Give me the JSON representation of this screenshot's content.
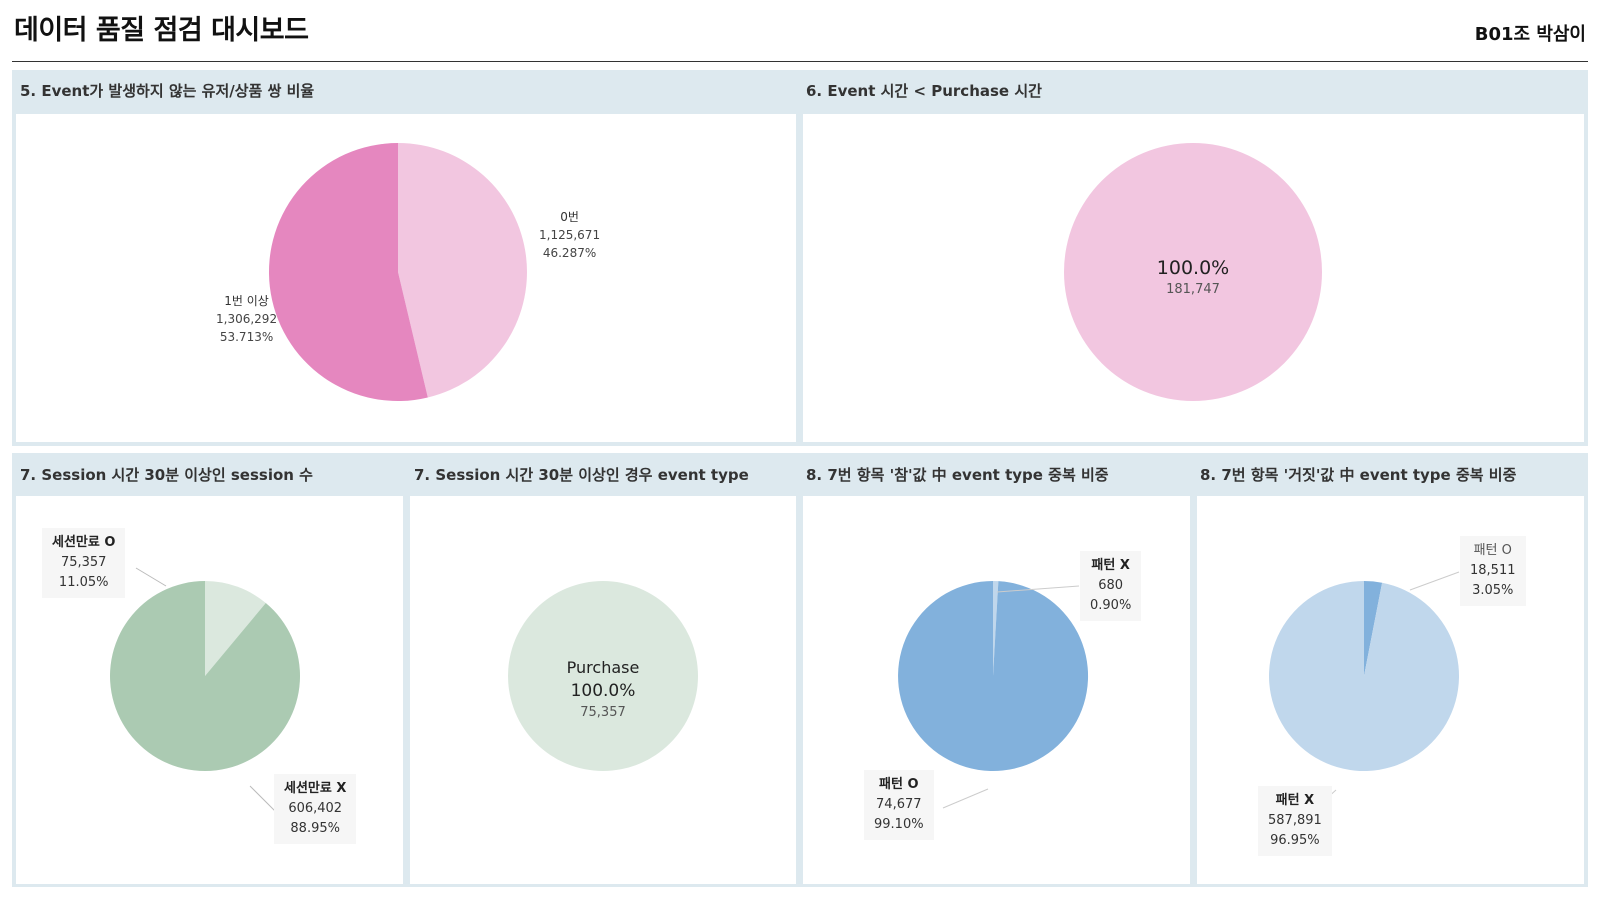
{
  "header": {
    "title": "데이터 품질 점검 대시보드",
    "author": "B01조 박삼이"
  },
  "colors": {
    "pink_light": "#f2c6e0",
    "pink_dark": "#e587bf",
    "green_light": "#dbe8de",
    "green_dark": "#abcab2",
    "blue_light": "#c0d7ec",
    "blue_dark": "#82b1dc",
    "band": "#dde9ef"
  },
  "panels": {
    "p5": {
      "title": "5.  Event가 발생하지 않는 유저/상품 쌍 비율"
    },
    "p6": {
      "title": "6. Event 시간 < Purchase 시간"
    },
    "p7a": {
      "title": "7. Session 시간 30분 이상인 session 수"
    },
    "p7b": {
      "title": "7. Session 시간 30분 이상인 경우 event type"
    },
    "p8a": {
      "title": "8. 7번 항목 '참'값 中 event type 중복 비중"
    },
    "p8b": {
      "title": "8. 7번 항목 '거짓'값 中 event type 중복 비중"
    }
  },
  "chart_data": [
    {
      "id": "p5",
      "type": "pie",
      "title": "5.  Event가 발생하지 않는 유저/상품 쌍 비율",
      "slices": [
        {
          "label": "0번",
          "value": 1125671,
          "value_text": "1,125,671",
          "percent_text": "46.287%",
          "color": "#f2c6e0"
        },
        {
          "label": "1번 이상",
          "value": 1306292,
          "value_text": "1,306,292",
          "percent_text": "53.713%",
          "color": "#e587bf"
        }
      ]
    },
    {
      "id": "p6",
      "type": "pie",
      "title": "6. Event 시간 < Purchase 시간",
      "slices": [
        {
          "label": "",
          "value": 181747,
          "value_text": "181,747",
          "percent_text": "100.0%",
          "color": "#f2c6e0"
        }
      ]
    },
    {
      "id": "p7a",
      "type": "pie",
      "title": "7. Session 시간 30분 이상인 session 수",
      "slices": [
        {
          "label": "세션만료 O",
          "value": 75357,
          "value_text": "75,357",
          "percent_text": "11.05%",
          "color": "#dbe8de"
        },
        {
          "label": "세션만료 X",
          "value": 606402,
          "value_text": "606,402",
          "percent_text": "88.95%",
          "color": "#abcab2"
        }
      ]
    },
    {
      "id": "p7b",
      "type": "pie",
      "title": "7. Session 시간 30분 이상인 경우 event type",
      "slices": [
        {
          "label": "Purchase",
          "value": 75357,
          "value_text": "75,357",
          "percent_text": "100.0%",
          "color": "#dbe8de"
        }
      ]
    },
    {
      "id": "p8a",
      "type": "pie",
      "title": "8. 7번 항목 '참'값 中 event type 중복 비중",
      "slices": [
        {
          "label": "패턴 X",
          "value": 680,
          "value_text": "680",
          "percent_text": "0.90%",
          "color": "#c0d7ec"
        },
        {
          "label": "패턴 O",
          "value": 74677,
          "value_text": "74,677",
          "percent_text": "99.10%",
          "color": "#82b1dc"
        }
      ]
    },
    {
      "id": "p8b",
      "type": "pie",
      "title": "8. 7번 항목 '거짓'값 中 event type 중복 비중",
      "slices": [
        {
          "label": "패턴 O",
          "value": 18511,
          "value_text": "18,511",
          "percent_text": "3.05%",
          "color": "#82b1dc"
        },
        {
          "label": "패턴 X",
          "value": 587891,
          "value_text": "587,891",
          "percent_text": "96.95%",
          "color": "#c0d7ec"
        }
      ]
    }
  ]
}
